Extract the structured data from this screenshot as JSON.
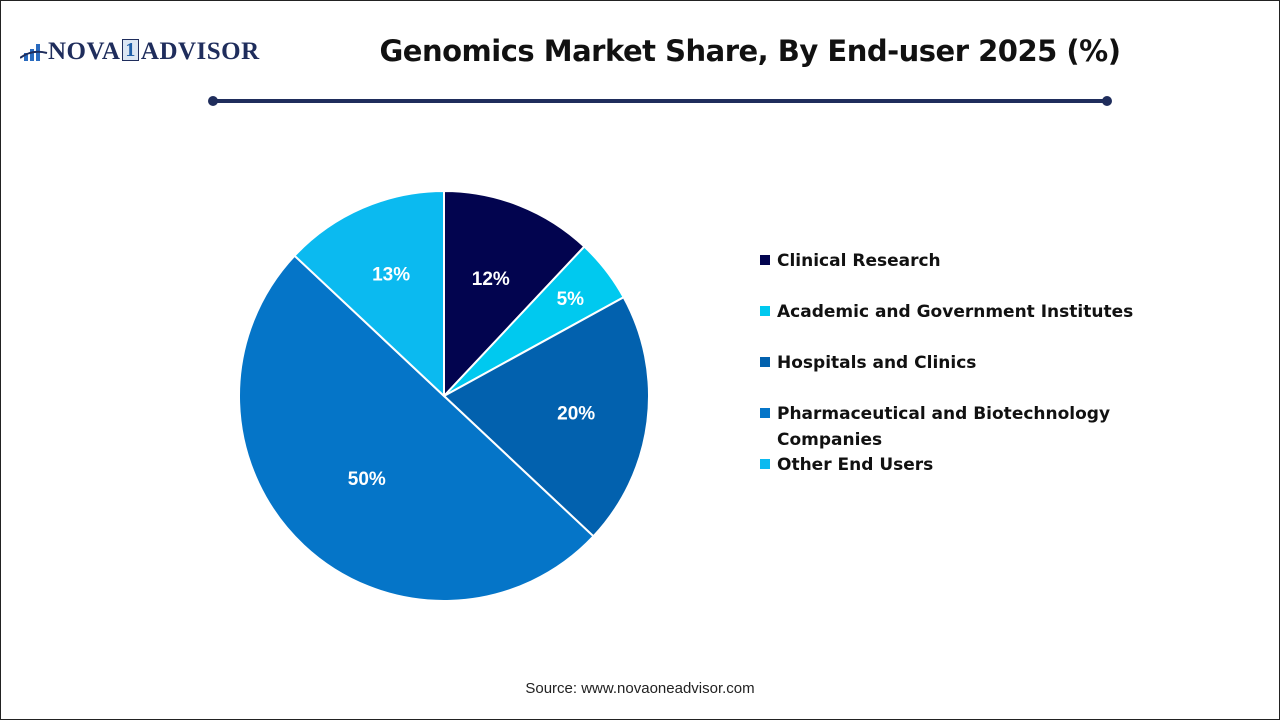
{
  "header": {
    "logo": {
      "left": "NOVA",
      "one": "1",
      "right": "ADVISOR"
    },
    "title": "Genomics Market Share, By End-user 2025 (%)"
  },
  "legend": {
    "items": [
      {
        "label": "Clinical Research",
        "color": "#02044f"
      },
      {
        "label": "Academic and Government Institutes",
        "color": "#00c9ef"
      },
      {
        "label": "Hospitals and Clinics",
        "color": "#0261ae"
      },
      {
        "label_line1": "Pharmaceutical and Biotechnology",
        "label_line2": "Companies",
        "color": "#0575c8"
      },
      {
        "label": "Other End Users",
        "color": "#0bbaf0"
      }
    ]
  },
  "footer": {
    "source": "Source: www.novaoneadvisor.com"
  },
  "chart_data": {
    "type": "pie",
    "title": "Genomics Market Share, By End-user 2025 (%)",
    "categories": [
      "Clinical Research",
      "Academic and Government Institutes",
      "Hospitals and Clinics",
      "Pharmaceutical and Biotechnology Companies",
      "Other End Users"
    ],
    "values": [
      12,
      5,
      20,
      50,
      13
    ],
    "labels": [
      "12%",
      "5%",
      "20%",
      "50%",
      "13%"
    ],
    "colors": [
      "#02044f",
      "#00c9ef",
      "#0261ae",
      "#0575c8",
      "#0bbaf0"
    ],
    "start_angle": "12 o'clock, clockwise",
    "legend_position": "right",
    "unit": "%"
  }
}
